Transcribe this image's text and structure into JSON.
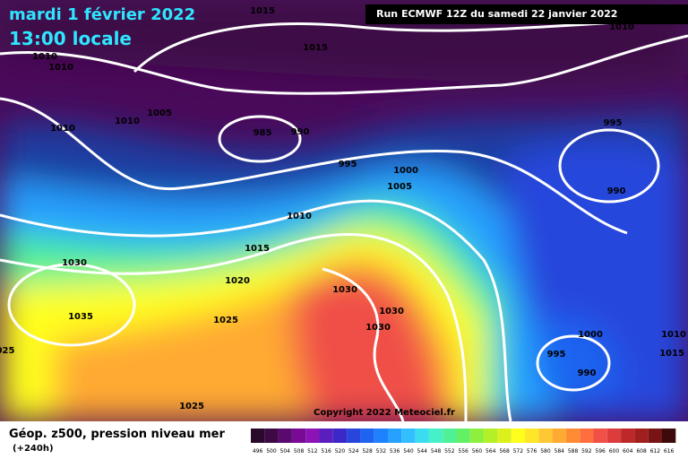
{
  "header": {
    "date": "mardi 1 février 2022",
    "time": "13:00 locale",
    "run": "Run ECMWF 12Z du samedi 22 janvier 2022"
  },
  "isobar_labels": [
    "1015",
    "1010",
    "1015",
    "1010",
    "1010",
    "1005",
    "1010",
    "1010",
    "985",
    "990",
    "995",
    "995",
    "1000",
    "1005",
    "990",
    "1010",
    "1015",
    "1030",
    "1020",
    "1030",
    "1030",
    "1035",
    "1025",
    "1030",
    "1000",
    "1010",
    "1015",
    "995",
    "990",
    "1025",
    "025"
  ],
  "copyright": "Copyright 2022 Meteociel.fr",
  "legend": {
    "title": "Géop. z500, pression niveau mer",
    "lead": "(+240h)",
    "scale": [
      496,
      500,
      504,
      508,
      512,
      516,
      520,
      524,
      528,
      532,
      536,
      540,
      544,
      548,
      552,
      556,
      560,
      564,
      568,
      572,
      576,
      580,
      584,
      588,
      592,
      596,
      600,
      604,
      608,
      612,
      616
    ],
    "colors": [
      "#2a0a2a",
      "#3d0a46",
      "#5a0a6e",
      "#780a96",
      "#8c14b4",
      "#5a1ebe",
      "#3c28c8",
      "#2846dc",
      "#1e64f0",
      "#1e82ff",
      "#28a0ff",
      "#32beff",
      "#3cdcf0",
      "#46f0c8",
      "#50f096",
      "#64f064",
      "#8cf03c",
      "#b4f028",
      "#dcf01e",
      "#ffff1e",
      "#ffe628",
      "#ffc832",
      "#ffaa32",
      "#ff8c32",
      "#ff6e3c",
      "#f05046",
      "#dc3c3c",
      "#be2828",
      "#a01e1e",
      "#781414",
      "#3c0a0a"
    ]
  }
}
